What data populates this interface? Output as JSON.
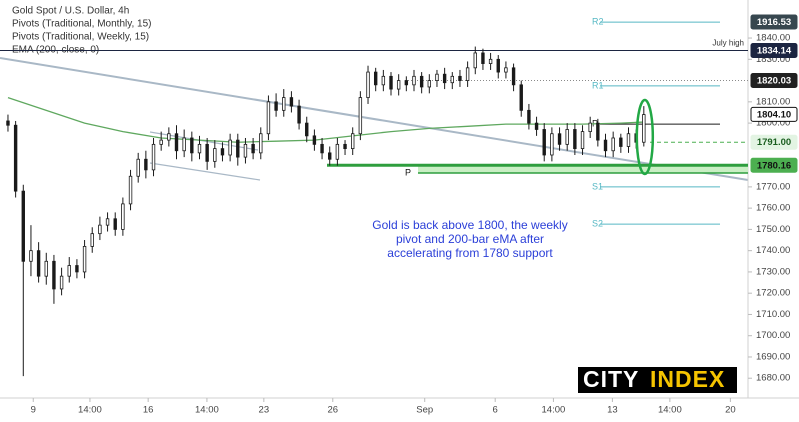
{
  "chart_data": {
    "type": "candlestick",
    "legend": [
      "Gold Spot / U.S. Dollar, 4h",
      "Pivots (Traditional, Monthly, 15)",
      "Pivots (Traditional, Weekly, 15)",
      "EMA (200, close, 0)"
    ],
    "open": [
      1801,
      1799,
      1768,
      1735,
      1740,
      1728,
      1735,
      1722,
      1728,
      1733,
      1730,
      1742,
      1748,
      1752,
      1755,
      1750,
      1762,
      1775,
      1783,
      1778,
      1790,
      1792,
      1795,
      1787,
      1793,
      1786,
      1790,
      1782,
      1788,
      1785,
      1792,
      1784,
      1790,
      1786,
      1795,
      1810,
      1806,
      1812,
      1808,
      1800,
      1794,
      1790,
      1786,
      1783,
      1790,
      1788,
      1795,
      1812,
      1824,
      1818,
      1822,
      1816,
      1820,
      1818,
      1822,
      1817,
      1820,
      1823,
      1819,
      1822,
      1820,
      1826,
      1833,
      1828,
      1830,
      1824,
      1826,
      1818,
      1806,
      1800,
      1797,
      1785,
      1795,
      1790,
      1797,
      1788,
      1796,
      1800,
      1792,
      1787,
      1793,
      1789,
      1795,
      1791
    ],
    "high": [
      1804,
      1801,
      1771,
      1752,
      1744,
      1739,
      1738,
      1732,
      1737,
      1736,
      1745,
      1751,
      1756,
      1758,
      1758,
      1765,
      1778,
      1786,
      1787,
      1793,
      1796,
      1798,
      1799,
      1797,
      1796,
      1794,
      1793,
      1792,
      1791,
      1795,
      1795,
      1793,
      1793,
      1798,
      1813,
      1814,
      1816,
      1815,
      1811,
      1803,
      1797,
      1793,
      1789,
      1793,
      1792,
      1798,
      1815,
      1827,
      1826,
      1825,
      1824,
      1823,
      1822,
      1825,
      1824,
      1823,
      1825,
      1826,
      1824,
      1825,
      1829,
      1836,
      1835,
      1833,
      1832,
      1829,
      1828,
      1820,
      1809,
      1803,
      1800,
      1798,
      1798,
      1800,
      1800,
      1799,
      1803,
      1802,
      1795,
      1796,
      1795,
      1798,
      1797,
      1808
    ],
    "low": [
      1796,
      1765,
      1681,
      1728,
      1725,
      1724,
      1715,
      1719,
      1725,
      1727,
      1727,
      1739,
      1745,
      1749,
      1747,
      1747,
      1759,
      1772,
      1774,
      1775,
      1787,
      1789,
      1783,
      1784,
      1782,
      1783,
      1778,
      1779,
      1782,
      1782,
      1780,
      1781,
      1783,
      1783,
      1792,
      1803,
      1803,
      1805,
      1797,
      1791,
      1787,
      1783,
      1780,
      1780,
      1785,
      1785,
      1792,
      1809,
      1815,
      1815,
      1813,
      1813,
      1815,
      1815,
      1814,
      1814,
      1817,
      1816,
      1816,
      1817,
      1817,
      1823,
      1825,
      1825,
      1821,
      1821,
      1815,
      1803,
      1797,
      1794,
      1782,
      1782,
      1787,
      1787,
      1785,
      1785,
      1793,
      1789,
      1784,
      1784,
      1786,
      1786,
      1788,
      1789
    ],
    "close": [
      1799,
      1768,
      1735,
      1740,
      1728,
      1735,
      1722,
      1728,
      1733,
      1730,
      1742,
      1748,
      1752,
      1755,
      1750,
      1762,
      1775,
      1783,
      1778,
      1790,
      1792,
      1795,
      1787,
      1793,
      1786,
      1790,
      1782,
      1788,
      1785,
      1792,
      1784,
      1790,
      1786,
      1795,
      1810,
      1806,
      1812,
      1808,
      1800,
      1794,
      1790,
      1786,
      1783,
      1790,
      1788,
      1795,
      1812,
      1824,
      1818,
      1822,
      1816,
      1820,
      1818,
      1822,
      1817,
      1820,
      1823,
      1819,
      1822,
      1820,
      1826,
      1833,
      1828,
      1830,
      1824,
      1826,
      1818,
      1806,
      1800,
      1797,
      1785,
      1795,
      1790,
      1797,
      1788,
      1796,
      1800,
      1792,
      1787,
      1793,
      1789,
      1795,
      1791,
      1804
    ],
    "up_color": "#ffffff",
    "down_color": "#1a1a1a",
    "edge_color": "#1a1a1a",
    "ema": {
      "x": [
        0,
        5,
        10,
        15,
        20,
        25,
        30,
        35,
        40,
        45,
        50,
        55,
        60,
        65,
        70,
        75,
        80,
        83
      ],
      "values": [
        1812,
        1806,
        1800,
        1796,
        1793,
        1792,
        1791,
        1791.5,
        1792,
        1794,
        1796,
        1797.5,
        1798.5,
        1799.5,
        1799.5,
        1799.5,
        1800,
        1800.5
      ],
      "color": "#5fa85f"
    },
    "xlim": [
      -1.04,
      96.6
    ],
    "xticks": [
      {
        "value": 3.3,
        "label": "9"
      },
      {
        "value": 10.7,
        "label": "14:00"
      },
      {
        "value": 18.3,
        "label": "16"
      },
      {
        "value": 25.97,
        "label": "14:00"
      },
      {
        "value": 33.4,
        "label": "23"
      },
      {
        "value": 42.4,
        "label": "26"
      },
      {
        "value": 54.4,
        "label": "Sep"
      },
      {
        "value": 63.6,
        "label": "6"
      },
      {
        "value": 71.2,
        "label": "14:00"
      },
      {
        "value": 78.9,
        "label": "13"
      },
      {
        "value": 86.4,
        "label": "14:00"
      },
      {
        "value": 94.3,
        "label": "20"
      }
    ],
    "ylim": [
      1670.7,
      1857.9
    ],
    "yticks": [
      {
        "value": 1680,
        "label": "1680.00"
      },
      {
        "value": 1690,
        "label": "1690.00"
      },
      {
        "value": 1700,
        "label": "1700.00"
      },
      {
        "value": 1710,
        "label": "1710.00"
      },
      {
        "value": 1720,
        "label": "1720.00"
      },
      {
        "value": 1730,
        "label": "1730.00"
      },
      {
        "value": 1740,
        "label": "1740.00"
      },
      {
        "value": 1750,
        "label": "1750.00"
      },
      {
        "value": 1760,
        "label": "1760.00"
      },
      {
        "value": 1770,
        "label": "1770.00"
      },
      {
        "value": 1800,
        "label": "1800.00"
      },
      {
        "value": 1810,
        "label": "1810.00"
      },
      {
        "value": 1830,
        "label": "1830.00"
      },
      {
        "value": 1840,
        "label": "1840.00"
      }
    ],
    "weekly_pivots": [
      {
        "label": "R2",
        "value": 1847.5
      },
      {
        "label": "R1",
        "value": 1817.5
      },
      {
        "label": "P",
        "value": 1799.5
      },
      {
        "label": "S1",
        "value": 1770
      },
      {
        "label": "S2",
        "value": 1752.5
      }
    ],
    "pivot_color": "#56b8c4",
    "pivot_p_color": "#1a1a1a",
    "monthly_pivot": {
      "label": "P",
      "value": 1776.5
    },
    "levels": [
      {
        "value": 1916.53,
        "label": "1916.53",
        "bg": "#37474f",
        "fg": "#ffffff"
      },
      {
        "value": 1834.14,
        "label": "1834.14",
        "note": "July high",
        "bg": "#1c2541",
        "fg": "#ffffff",
        "line_color": "#1c2541"
      },
      {
        "value": 1820.03,
        "label": "1820.03",
        "bg": "#212121",
        "fg": "#ffffff",
        "line_color": "#8a8a8a"
      },
      {
        "value": 1804.1,
        "label": "1804.10",
        "bg": "#ffffff",
        "fg": "#111111"
      },
      {
        "value": 1791,
        "label": "1791.00",
        "bg": "#e3f4e3",
        "fg": "#1b5e20",
        "line_color": "#4caf50"
      },
      {
        "value": 1780.16,
        "label": "1780.16",
        "bg": "#4caf50",
        "fg": "#111111",
        "line_color": "#2e9e3e"
      }
    ],
    "annotation": [
      "Gold is back above 1800, the weekly",
      "pivot and 200-bar eMA after",
      "accelerating from 1780 support"
    ],
    "logo": [
      "CITY",
      "INDEX"
    ]
  }
}
